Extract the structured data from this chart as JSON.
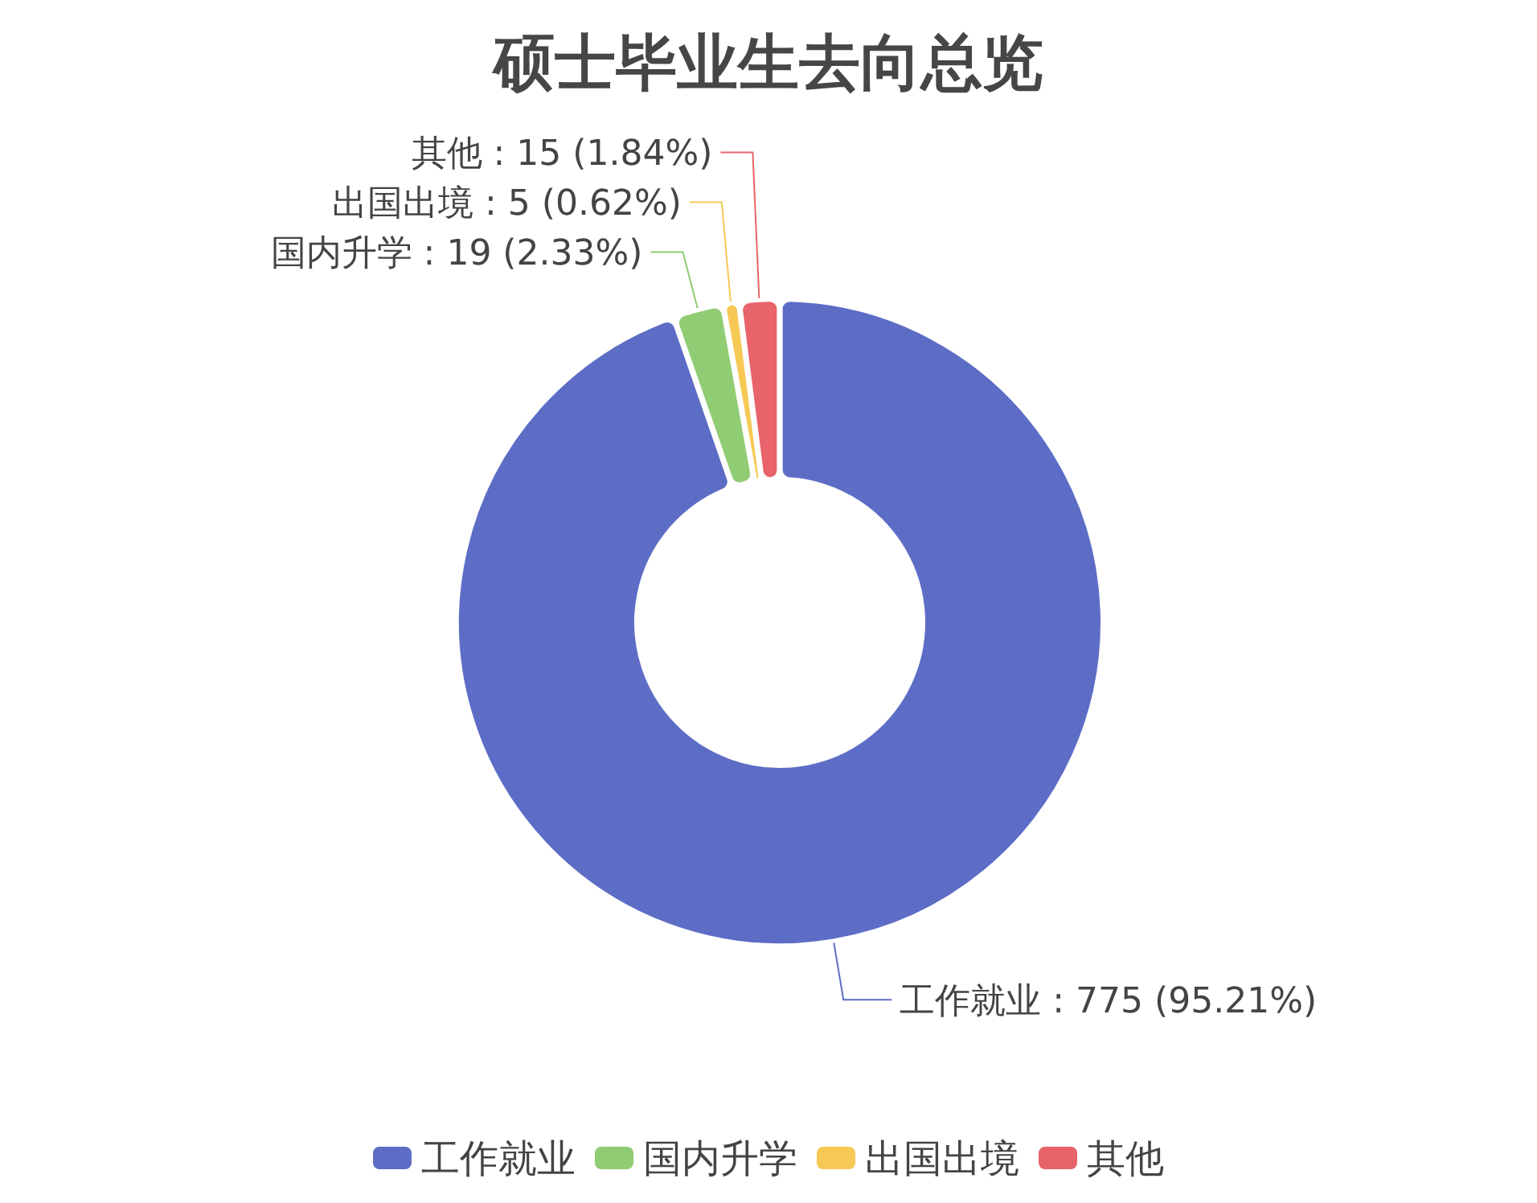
{
  "chart_data": {
    "type": "donut",
    "title": "硕士毕业生去向总览",
    "categories": [
      "工作就业",
      "国内升学",
      "出国出境",
      "其他"
    ],
    "values": [
      775,
      19,
      5,
      15
    ],
    "value_labels": [
      ": 775 (95.21%)",
      ": 19 (2.33%)",
      ": 5 (0.62%)",
      ": 15 (1.84%)"
    ],
    "colors": [
      "#5d6dc6",
      "#90cc73",
      "#f6c955",
      "#e8636a"
    ],
    "legend": "bottom"
  }
}
